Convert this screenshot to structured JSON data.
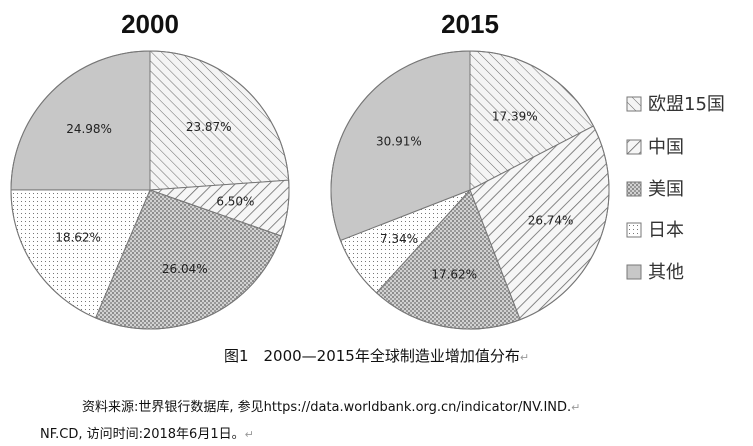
{
  "chart_data": [
    {
      "type": "pie",
      "title": "2000",
      "categories": [
        "欧盟15国",
        "中国",
        "美国",
        "日本",
        "其他"
      ],
      "values": [
        23.87,
        6.5,
        26.04,
        18.62,
        24.98
      ],
      "labels": [
        "23.87%",
        "6.50%",
        "26.04%",
        "18.62%",
        "24.98%"
      ],
      "start": "12 o'clock, clockwise"
    },
    {
      "type": "pie",
      "title": "2015",
      "categories": [
        "欧盟15国",
        "中国",
        "美国",
        "日本",
        "其他"
      ],
      "values": [
        17.39,
        26.74,
        17.62,
        7.34,
        30.91
      ],
      "labels": [
        "17.39%",
        "26.74%",
        "17.62%",
        "7.34%",
        "30.91%"
      ],
      "start": "12 o'clock, clockwise"
    }
  ],
  "legend": {
    "items": [
      {
        "label": "欧盟15国",
        "pattern": "hatch-back"
      },
      {
        "label": "中国",
        "pattern": "hatch-forward"
      },
      {
        "label": "美国",
        "pattern": "crosshatch"
      },
      {
        "label": "日本",
        "pattern": "dots"
      },
      {
        "label": "其他",
        "pattern": "solid-gray"
      }
    ]
  },
  "caption": {
    "text": "图1　2000—2015年全球制造业增加值分布",
    "return_mark": "↵"
  },
  "source": {
    "line1": "资料来源:世界银行数据库, 参见https://data.worldbank.org.cn/indicator/NV.IND.",
    "line2": "NF.CD, 访问时间:2018年6月1日。",
    "return_mark": "↵"
  },
  "colors": {
    "other_fill": "#c7c7c7",
    "pattern_bg": "#f2f2f2",
    "pattern_ink": "#6a6a6a",
    "outline": "#777777"
  }
}
